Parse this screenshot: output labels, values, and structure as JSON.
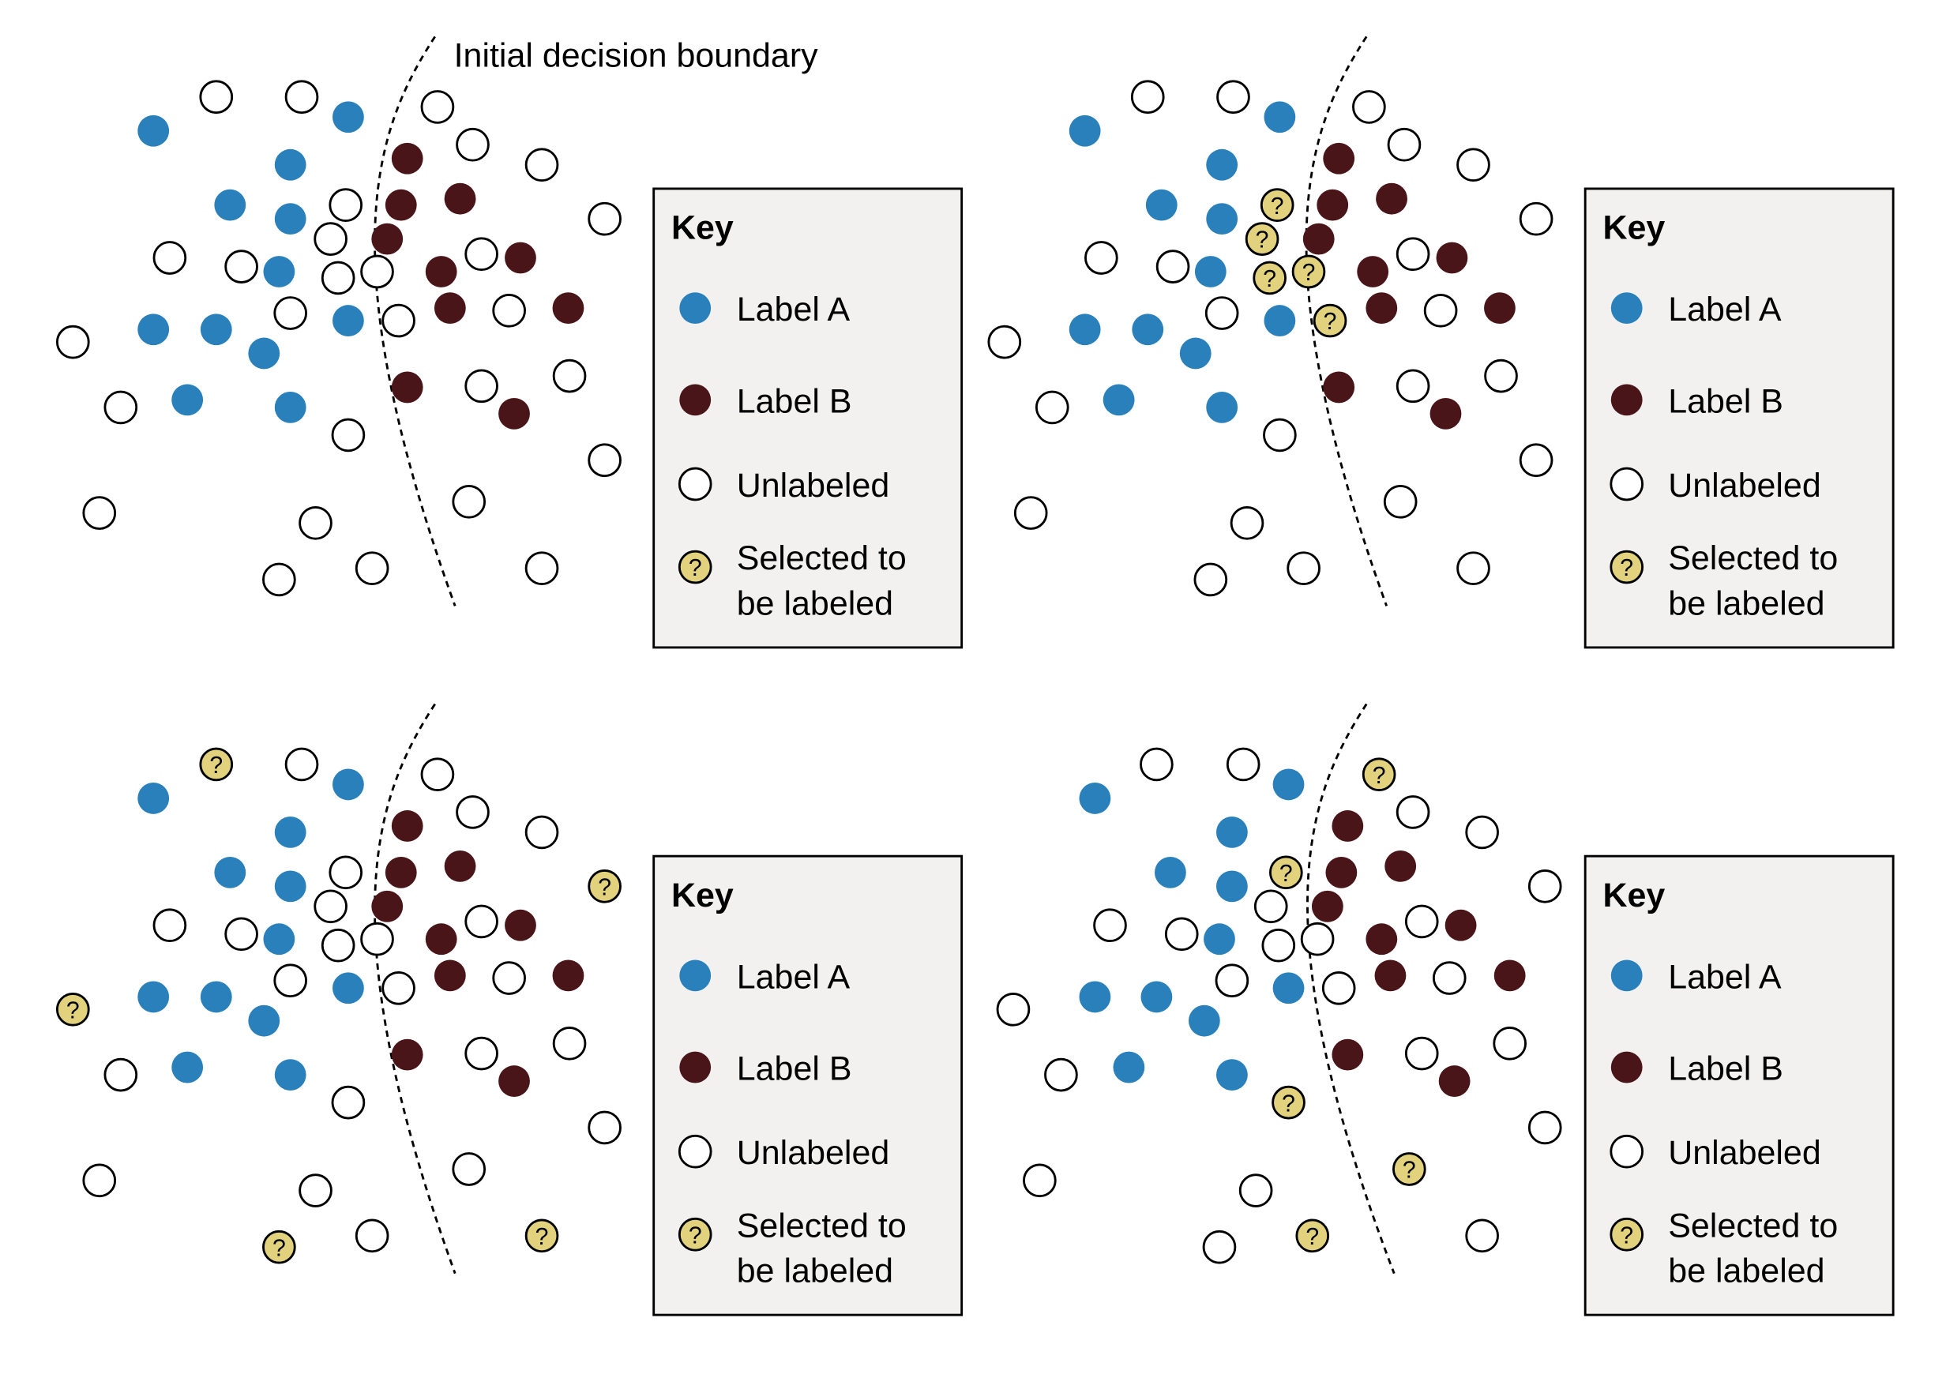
{
  "annotation": "Initial decision boundary",
  "key": {
    "title": "Key",
    "label_a": "Label A",
    "label_b": "Label B",
    "unlabeled": "Unlabeled",
    "selected_line1": "Selected to",
    "selected_line2": "be labeled",
    "query_mark": "?"
  },
  "colors": {
    "label_a": "#2a80bb",
    "label_b": "#4a1519",
    "unlabeled": "#ffffff",
    "selected": "#e2d27e",
    "key_background": "#f2f1f0"
  }
}
